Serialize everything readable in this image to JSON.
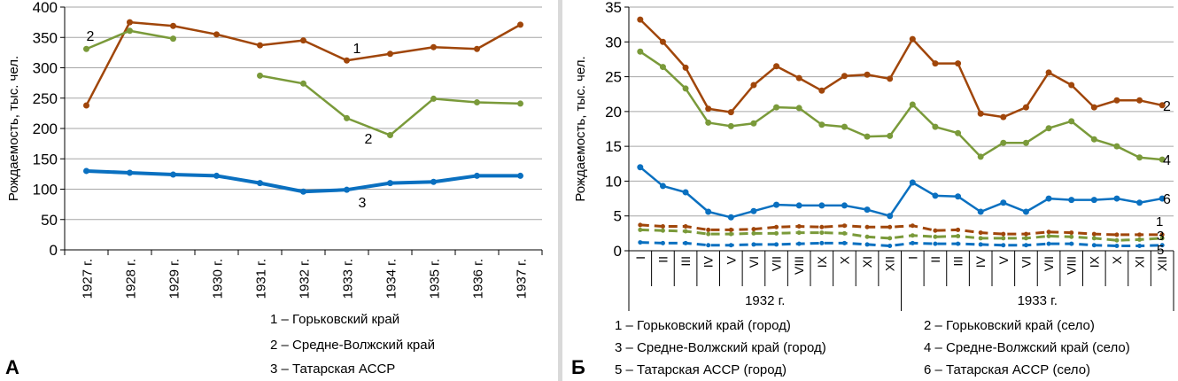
{
  "chart_data": [
    {
      "type": "line",
      "panel_label": "А",
      "title": "",
      "xlabel": "",
      "ylabel": "Рождаемость, тыс. чел.",
      "ylim": [
        0,
        400
      ],
      "yticks": [
        0,
        50,
        100,
        150,
        200,
        250,
        300,
        350,
        400
      ],
      "grid": true,
      "categories": [
        "1927 г.",
        "1928 г.",
        "1929 г.",
        "1930 г.",
        "1931 г.",
        "1932 г.",
        "1933 г.",
        "1934 г.",
        "1935 г.",
        "1936 г.",
        "1937 г."
      ],
      "series": [
        {
          "id": "1",
          "name": "Горьковский край",
          "color": "#a0460a",
          "style": "solid",
          "values": [
            238,
            375,
            369,
            355,
            337,
            345,
            312,
            323,
            334,
            331,
            371
          ]
        },
        {
          "id": "2",
          "name": "Средне-Волжский край",
          "color": "#7a9a3a",
          "style": "solid",
          "values": [
            331,
            361,
            348,
            null,
            287,
            274,
            217,
            189,
            249,
            243,
            241
          ]
        },
        {
          "id": "3",
          "name": "Татарская АССР",
          "color": "#0a70c0",
          "style": "solid-thick",
          "values": [
            130,
            127,
            124,
            122,
            110,
            96,
            99,
            110,
            112,
            122,
            122
          ]
        }
      ],
      "annotations": [
        {
          "text": "2",
          "series": "2",
          "near": "1927 г."
        },
        {
          "text": "1",
          "series": "1",
          "near": "1933 г."
        },
        {
          "text": "2",
          "series": "2",
          "near": "1933 г."
        },
        {
          "text": "3",
          "series": "3",
          "near": "1933 г."
        }
      ],
      "legend": [
        "1 – Горьковский край",
        "2 – Средне-Волжский край",
        "3 – Татарская АССР"
      ],
      "legend_position": "bottom-right"
    },
    {
      "type": "line",
      "panel_label": "Б",
      "title": "",
      "xlabel": "",
      "ylabel": "Рождаемость, тыс. чел.",
      "ylim": [
        0,
        35
      ],
      "yticks": [
        0,
        5,
        10,
        15,
        20,
        25,
        30,
        35
      ],
      "grid": true,
      "categories": [
        "I",
        "II",
        "III",
        "IV",
        "V",
        "VI",
        "VII",
        "VIII",
        "IX",
        "X",
        "XI",
        "XII",
        "I",
        "II",
        "III",
        "IV",
        "V",
        "VI",
        "VII",
        "VIII",
        "IX",
        "X",
        "XI",
        "XII"
      ],
      "groups": [
        {
          "label": "1932 г.",
          "count": 12
        },
        {
          "label": "1933 г.",
          "count": 12
        }
      ],
      "series": [
        {
          "id": "1",
          "name": "Горьковский край (город)",
          "color": "#a0460a",
          "style": "dashed",
          "values": [
            3.7,
            3.5,
            3.5,
            3.0,
            3.0,
            3.1,
            3.4,
            3.5,
            3.4,
            3.6,
            3.4,
            3.4,
            3.6,
            2.9,
            3.0,
            2.6,
            2.4,
            2.4,
            2.7,
            2.6,
            2.4,
            2.3,
            2.3,
            2.3
          ]
        },
        {
          "id": "2",
          "name": "Горьковский край (село)",
          "color": "#a0460a",
          "style": "solid",
          "values": [
            33.2,
            30.0,
            26.3,
            20.4,
            19.9,
            23.8,
            26.5,
            24.8,
            23.0,
            25.1,
            25.3,
            24.7,
            30.4,
            26.9,
            26.9,
            19.7,
            19.2,
            20.6,
            25.6,
            23.8,
            20.6,
            21.6,
            21.6,
            20.9
          ]
        },
        {
          "id": "3",
          "name": "Средне-Волжский край (город)",
          "color": "#7a9a3a",
          "style": "dashed",
          "values": [
            3.0,
            2.9,
            2.8,
            2.4,
            2.4,
            2.5,
            2.5,
            2.6,
            2.6,
            2.5,
            2.0,
            1.8,
            2.2,
            2.0,
            2.1,
            1.8,
            1.8,
            1.8,
            2.1,
            2.0,
            1.8,
            1.5,
            1.6,
            1.8
          ]
        },
        {
          "id": "4",
          "name": "Средне-Волжский край (село)",
          "color": "#7a9a3a",
          "style": "solid",
          "values": [
            28.6,
            26.4,
            23.3,
            18.4,
            17.9,
            18.3,
            20.6,
            20.5,
            18.1,
            17.8,
            16.4,
            16.5,
            21.0,
            17.8,
            16.9,
            13.5,
            15.5,
            15.5,
            17.6,
            18.6,
            16.0,
            15.0,
            13.4,
            13.1
          ]
        },
        {
          "id": "5",
          "name": "Татарская АССР (город)",
          "color": "#0a70c0",
          "style": "dashed",
          "values": [
            1.2,
            1.1,
            1.1,
            0.8,
            0.8,
            0.9,
            0.9,
            1.0,
            1.1,
            1.1,
            0.9,
            0.7,
            1.1,
            1.0,
            1.0,
            0.9,
            0.8,
            0.8,
            1.0,
            1.0,
            0.8,
            0.7,
            0.7,
            0.8
          ]
        },
        {
          "id": "6",
          "name": "Татарская АССР (село)",
          "color": "#0a70c0",
          "style": "solid",
          "values": [
            12.0,
            9.3,
            8.4,
            5.6,
            4.8,
            5.7,
            6.6,
            6.5,
            6.5,
            6.5,
            5.9,
            5.0,
            9.8,
            7.9,
            7.8,
            5.6,
            6.9,
            5.6,
            7.5,
            7.3,
            7.3,
            7.5,
            6.9,
            7.5
          ]
        }
      ],
      "end_labels": [
        "2",
        "4",
        "6",
        "1",
        "3",
        "5"
      ],
      "legend": [
        "1 – Горьковский край (город)",
        "2 – Горьковский край (село)",
        "3 – Средне-Волжский край (город)",
        "4 – Средне-Волжский край (село)",
        "5 – Татарская АССР (город)",
        "6 – Татарская АССР (село)"
      ],
      "legend_position": "bottom"
    }
  ]
}
